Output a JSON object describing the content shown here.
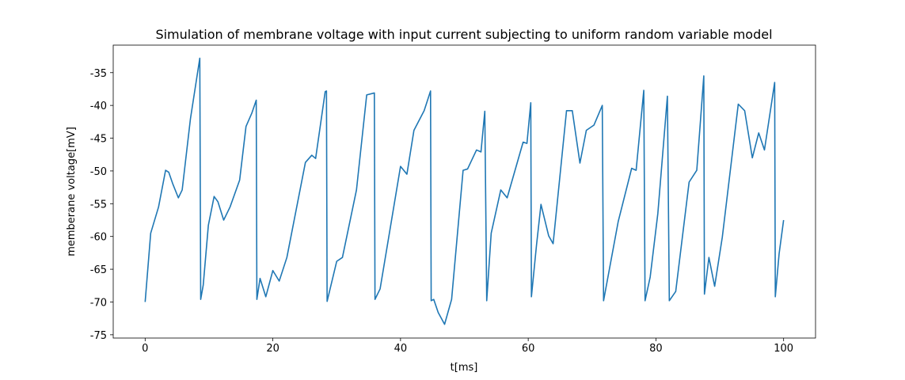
{
  "chart_data": {
    "type": "line",
    "title": "Simulation of membrane voltage with input current subjecting to uniform random variable model",
    "xlabel": "t[ms]",
    "ylabel": "memberane voltage[mV]",
    "x": [
      0,
      0.87,
      2.1,
      3.2,
      3.7,
      4.3,
      5.2,
      5.8,
      7.1,
      8.56,
      8.7,
      9.1,
      9.9,
      10.8,
      11.4,
      12.3,
      13.3,
      14.8,
      15.8,
      16.7,
      17.4,
      17.5,
      18,
      18.9,
      20,
      21,
      22.2,
      25.1,
      26.1,
      26.7,
      28.2,
      28.4,
      28.5,
      30,
      30.9,
      33.1,
      34.7,
      35.9,
      36,
      36.8,
      40,
      41,
      42.1,
      43.7,
      44.7,
      44.8,
      45.2,
      45.9,
      46.9,
      48,
      49.8,
      50.5,
      51.9,
      52.6,
      53.2,
      53.5,
      54.2,
      55.7,
      56.7,
      59.2,
      59.8,
      60.4,
      60.5,
      61.3,
      62,
      63.2,
      63.9,
      66,
      66.9,
      68.1,
      69.1,
      70.3,
      71.6,
      71.8,
      74.1,
      76.2,
      76.9,
      78.1,
      78.3,
      79.1,
      80.3,
      81.8,
      82.1,
      83.1,
      85.2,
      86.4,
      87.5,
      87.6,
      88.3,
      89.2,
      90.4,
      92.9,
      93.9,
      95.1,
      96.1,
      97,
      98.6,
      98.7,
      99.3,
      100
    ],
    "series": [
      {
        "name": "membrane voltage",
        "color": "#1f77b4",
        "values": [
          -70,
          -59.5,
          -55.5,
          -49.9,
          -50.2,
          -51.9,
          -54.1,
          -52.9,
          -42,
          -32.8,
          -69.6,
          -67.4,
          -58.3,
          -53.9,
          -54.7,
          -57.5,
          -55.5,
          -51.4,
          -43.2,
          -41.2,
          -39.2,
          -69.6,
          -66.4,
          -69.2,
          -65.2,
          -66.8,
          -63.2,
          -48.7,
          -47.6,
          -48.1,
          -37.9,
          -37.8,
          -69.9,
          -63.8,
          -63.2,
          -52.9,
          -38.4,
          -38.1,
          -69.6,
          -68,
          -49.3,
          -50.5,
          -43.8,
          -40.8,
          -37.8,
          -69.8,
          -69.6,
          -71.6,
          -73.4,
          -69.6,
          -49.9,
          -49.7,
          -46.8,
          -47.1,
          -40.9,
          -69.8,
          -59.5,
          -52.9,
          -54.1,
          -45.6,
          -45.8,
          -39.6,
          -69.2,
          -61.3,
          -55.1,
          -59.9,
          -61.1,
          -40.8,
          -40.8,
          -48.8,
          -43.8,
          -43,
          -40,
          -69.8,
          -57.7,
          -49.6,
          -49.9,
          -37.7,
          -69.8,
          -66.2,
          -56.5,
          -38.6,
          -69.8,
          -68.4,
          -51.7,
          -49.9,
          -35.5,
          -68.8,
          -63.2,
          -67.6,
          -60.1,
          -39.8,
          -40.8,
          -48,
          -44.2,
          -46.8,
          -36.5,
          -69.2,
          -62.6,
          -57.5
        ]
      }
    ],
    "xlim": [
      -5,
      105
    ],
    "xticks": [
      0,
      20,
      40,
      60,
      80,
      100
    ],
    "ylim": [
      -75.5,
      -30.8
    ],
    "yticks": [
      -75,
      -70,
      -65,
      -60,
      -55,
      -50,
      -45,
      -40,
      -35
    ],
    "grid": false
  }
}
